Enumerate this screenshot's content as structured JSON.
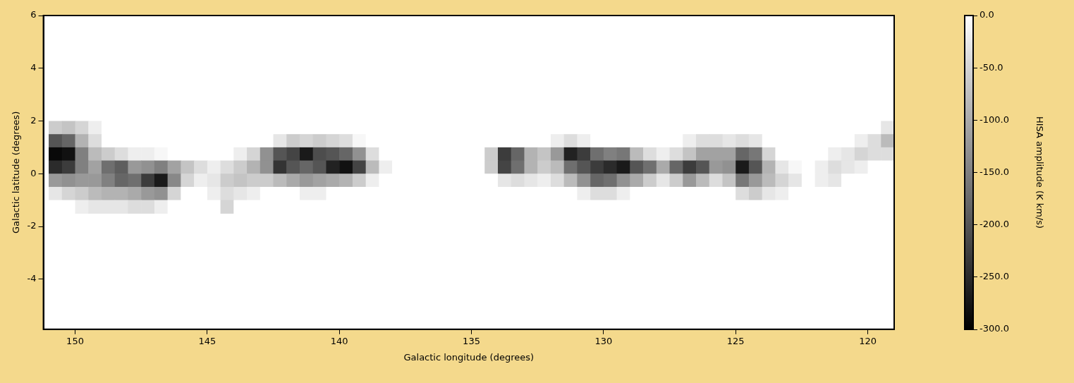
{
  "chart_data": {
    "type": "heatmap",
    "xlabel": "Galactic longitude (degrees)",
    "ylabel": "Galactic latitude (degrees)",
    "xlim": [
      151.2,
      119
    ],
    "ylim": [
      -5.9,
      6
    ],
    "xticks": [
      150,
      145,
      140,
      135,
      130,
      125,
      120
    ],
    "yticks": [
      -4,
      -2,
      0,
      2,
      4,
      6
    ],
    "grid": false,
    "x": [
      150.75,
      150.25,
      149.75,
      149.25,
      148.75,
      148.25,
      147.75,
      147.25,
      146.75,
      146.25,
      145.75,
      145.25,
      144.75,
      144.25,
      143.75,
      143.25,
      142.75,
      142.25,
      141.75,
      141.25,
      140.75,
      140.25,
      139.75,
      139.25,
      138.75,
      138.25,
      137.75,
      137.25,
      136.75,
      136.25,
      135.75,
      135.25,
      134.75,
      134.25,
      133.75,
      133.25,
      132.75,
      132.25,
      131.75,
      131.25,
      130.75,
      130.25,
      129.75,
      129.25,
      128.75,
      128.25,
      127.75,
      127.25,
      126.75,
      126.25,
      125.75,
      125.25,
      124.75,
      124.25,
      123.75,
      123.25,
      122.75,
      122.25,
      121.75,
      121.25,
      120.75,
      120.25,
      119.75,
      119.25
    ],
    "y": [
      1.75,
      1.25,
      0.75,
      0.25,
      -0.25,
      -0.75,
      -1.25
    ],
    "z": [
      [
        -60,
        -70,
        -50,
        -20,
        0,
        0,
        0,
        0,
        0,
        0,
        0,
        0,
        0,
        0,
        0,
        0,
        0,
        0,
        0,
        0,
        0,
        0,
        0,
        0,
        0,
        0,
        0,
        0,
        0,
        0,
        0,
        0,
        0,
        0,
        0,
        0,
        0,
        0,
        0,
        0,
        0,
        0,
        0,
        0,
        0,
        0,
        0,
        0,
        0,
        0,
        0,
        0,
        0,
        0,
        0,
        0,
        0,
        0,
        0,
        0,
        0,
        0,
        0,
        -30
      ],
      [
        -200,
        -180,
        -90,
        -40,
        0,
        0,
        0,
        0,
        0,
        0,
        0,
        0,
        0,
        0,
        0,
        0,
        0,
        -30,
        -60,
        -50,
        -60,
        -50,
        -40,
        -10,
        0,
        0,
        0,
        0,
        0,
        0,
        0,
        0,
        0,
        0,
        0,
        0,
        0,
        0,
        -20,
        -40,
        -20,
        0,
        0,
        0,
        0,
        0,
        0,
        0,
        -20,
        -40,
        -40,
        -30,
        -40,
        -30,
        0,
        0,
        0,
        0,
        0,
        0,
        0,
        -20,
        -40,
        -80
      ],
      [
        -290,
        -280,
        -150,
        -80,
        -60,
        -40,
        -20,
        -20,
        -10,
        0,
        0,
        0,
        0,
        0,
        -20,
        -50,
        -130,
        -200,
        -220,
        -270,
        -210,
        -200,
        -180,
        -130,
        -40,
        0,
        0,
        0,
        0,
        0,
        0,
        0,
        0,
        -60,
        -230,
        -180,
        -90,
        -70,
        -120,
        -260,
        -230,
        -170,
        -150,
        -160,
        -80,
        -40,
        -20,
        -40,
        -70,
        -110,
        -110,
        -110,
        -180,
        -160,
        -50,
        0,
        0,
        0,
        0,
        -20,
        -30,
        -50,
        -40,
        -40
      ],
      [
        -250,
        -230,
        -150,
        -110,
        -170,
        -190,
        -120,
        -130,
        -150,
        -110,
        -70,
        -40,
        -20,
        -40,
        -60,
        -90,
        -130,
        -240,
        -200,
        -180,
        -200,
        -260,
        -280,
        -220,
        -80,
        -20,
        0,
        0,
        0,
        0,
        0,
        0,
        0,
        -60,
        -220,
        -170,
        -90,
        -60,
        -80,
        -170,
        -200,
        -230,
        -250,
        -270,
        -200,
        -170,
        -100,
        -180,
        -230,
        -200,
        -120,
        -130,
        -270,
        -200,
        -90,
        -30,
        -10,
        0,
        -20,
        -40,
        -30,
        -20,
        0,
        0
      ],
      [
        -120,
        -130,
        -120,
        -120,
        -150,
        -180,
        -170,
        -230,
        -270,
        -140,
        -50,
        -20,
        -30,
        -60,
        -70,
        -60,
        -60,
        -80,
        -100,
        -120,
        -110,
        -100,
        -90,
        -60,
        -20,
        0,
        0,
        0,
        0,
        0,
        0,
        0,
        0,
        0,
        -30,
        -40,
        -30,
        -20,
        -40,
        -80,
        -130,
        -180,
        -170,
        -130,
        -100,
        -60,
        -30,
        -60,
        -120,
        -80,
        -40,
        -70,
        -160,
        -120,
        -80,
        -50,
        -30,
        0,
        -20,
        -30,
        0,
        0,
        0,
        0
      ],
      [
        -30,
        -50,
        -60,
        -80,
        -90,
        -90,
        -100,
        -120,
        -130,
        -50,
        0,
        0,
        -20,
        -40,
        -30,
        -20,
        0,
        0,
        0,
        -20,
        -20,
        0,
        0,
        0,
        0,
        0,
        0,
        0,
        0,
        0,
        0,
        0,
        0,
        0,
        0,
        0,
        0,
        0,
        0,
        0,
        -20,
        -40,
        -40,
        -20,
        0,
        0,
        0,
        0,
        0,
        0,
        0,
        0,
        -40,
        -60,
        -30,
        -20,
        0,
        0,
        0,
        0,
        0,
        0,
        0,
        0
      ],
      [
        0,
        0,
        -20,
        -30,
        -30,
        -30,
        -40,
        -40,
        -20,
        0,
        0,
        0,
        0,
        -50,
        0,
        0,
        0,
        0,
        0,
        0,
        0,
        0,
        0,
        0,
        0,
        0,
        0,
        0,
        0,
        0,
        0,
        0,
        0,
        0,
        0,
        0,
        0,
        0,
        0,
        0,
        0,
        0,
        0,
        0,
        0,
        0,
        0,
        0,
        0,
        0,
        0,
        0,
        0,
        0,
        0,
        0,
        0,
        0,
        0,
        0,
        0,
        0,
        0,
        0
      ]
    ],
    "colorbar": {
      "label": "HISA amplitude (K km/s)",
      "range": [
        -300,
        0
      ],
      "ticks": [
        {
          "value": 0,
          "label": "0.0"
        },
        {
          "value": -50,
          "label": "-50.0"
        },
        {
          "value": -100,
          "label": "-100.0"
        },
        {
          "value": -150,
          "label": "-150.0"
        },
        {
          "value": -200,
          "label": "-200.0"
        },
        {
          "value": -250,
          "label": "-250.0"
        },
        {
          "value": -300,
          "label": "-300.0"
        }
      ]
    }
  }
}
